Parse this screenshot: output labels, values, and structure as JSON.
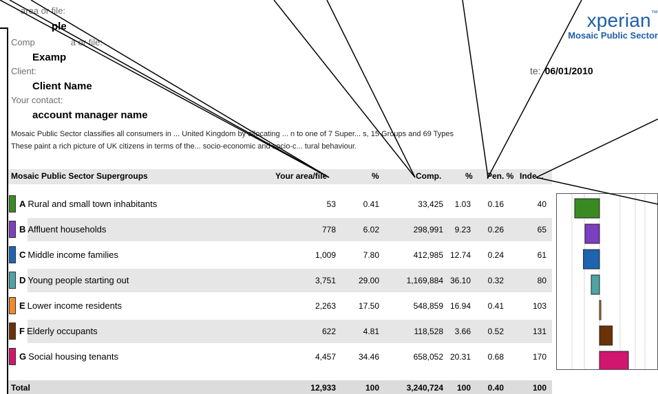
{
  "labels": {
    "area": "area or file:",
    "area_value": "ple",
    "comp": "Comp",
    "comp_rest": "a or file:",
    "comp_value": "Examp",
    "client": "Client:",
    "client_value": "Client Name",
    "contact": "Your contact:",
    "contact_value": "account manager name",
    "date_label": "te:",
    "date_value": "06/01/2010"
  },
  "logo": {
    "brand": "xperian",
    "tm": "™",
    "sub": "Mosaic Public Sector"
  },
  "intro": {
    "line1": "Mosaic Public Sector classifies all consumers in ... United Kingdom by allocating ... n to one of 7 Super... s, 15 Groups and 69 Types",
    "line2": "These paint a rich picture of UK citizens in terms of the... socio-economic and socio-c... tural behaviour."
  },
  "headers": {
    "group": "Mosaic Public Sector Supergroups",
    "area": "Your area/file",
    "pct": "%",
    "comp": "Comp.",
    "comp_pct": "%",
    "pen": "Pen. %",
    "index": "Inde..."
  },
  "rows": [
    {
      "letter": "A",
      "name": "Rural and small town inhabitants",
      "area": "53",
      "pct": "0.41",
      "comp": "33,425",
      "cpct": "1.03",
      "pen": "0.16",
      "index": "40",
      "color": "#3a8a22"
    },
    {
      "letter": "B",
      "name": "Affluent households",
      "area": "778",
      "pct": "6.02",
      "comp": "298,991",
      "cpct": "9.23",
      "pen": "0.26",
      "index": "65",
      "color": "#7b3fbf"
    },
    {
      "letter": "C",
      "name": "Middle income families",
      "area": "1,009",
      "pct": "7.80",
      "comp": "412,985",
      "cpct": "12.74",
      "pen": "0.24",
      "index": "61",
      "color": "#1f64b0"
    },
    {
      "letter": "D",
      "name": "Young people starting out",
      "area": "3,751",
      "pct": "29.00",
      "comp": "1,169,884",
      "cpct": "36.10",
      "pen": "0.32",
      "index": "80",
      "color": "#4fa3a3"
    },
    {
      "letter": "E",
      "name": "Lower income residents",
      "area": "2,263",
      "pct": "17.50",
      "comp": "548,859",
      "cpct": "16.94",
      "pen": "0.41",
      "index": "103",
      "color": "#f08a2a"
    },
    {
      "letter": "F",
      "name": "Elderly occupants",
      "area": "622",
      "pct": "4.81",
      "comp": "118,528",
      "cpct": "3.66",
      "pen": "0.52",
      "index": "131",
      "color": "#6b3208"
    },
    {
      "letter": "G",
      "name": "Social housing tenants",
      "area": "4,457",
      "pct": "34.46",
      "comp": "658,052",
      "cpct": "20.31",
      "pen": "0.68",
      "index": "170",
      "color": "#d0166e"
    }
  ],
  "total": {
    "label": "Total",
    "area": "12,933",
    "pct": "100",
    "comp": "3,240,724",
    "cpct": "100",
    "pen": "0.40",
    "index": "100"
  }
}
